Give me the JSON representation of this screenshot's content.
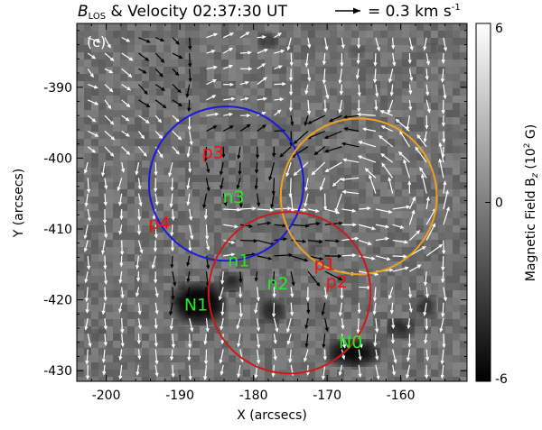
{
  "title": {
    "field_symbol": "B",
    "field_sub": "LOS",
    "text": " & Velocity 02:37:30 UT",
    "arrow_ref": "= 0.3 km s",
    "arrow_ref_exp": "-1"
  },
  "panel_tag": "(c)",
  "x_axis": {
    "label": "X (arcsecs)",
    "range": [
      -204,
      -151
    ],
    "ticks": [
      "-200",
      "-190",
      "-180",
      "-170",
      "-160"
    ]
  },
  "y_axis": {
    "label": "Y (arcsecs)",
    "range": [
      -431.5,
      -381
    ],
    "ticks": [
      "-390",
      "-400",
      "-410",
      "-420",
      "-430"
    ]
  },
  "colorbar": {
    "label": "Magnetic Field B",
    "label_sub": "z",
    "label_unit": " (10",
    "label_unit_exp": "2",
    "label_unit_end": " G)",
    "ticks": [
      "6",
      "0",
      "-6"
    ],
    "range": [
      -6,
      6
    ]
  },
  "circles": [
    {
      "name": "blue",
      "color": "#1a1adc",
      "cx": -183.7,
      "cy": -403.6,
      "r": 10.5
    },
    {
      "name": "orange",
      "color": "#f0a020",
      "cx": -165.7,
      "cy": -405.4,
      "r": 10.6
    },
    {
      "name": "red",
      "color": "#cc1a1a",
      "cx": -175.1,
      "cy": -419.0,
      "r": 11.0
    }
  ],
  "labels": [
    {
      "text": "p3",
      "x": -185.5,
      "y": -400.0,
      "color": "#ee1111"
    },
    {
      "text": "n3",
      "x": -182.7,
      "y": -406.3,
      "color": "#22ee22"
    },
    {
      "text": "p4",
      "x": -192.8,
      "y": -410.0,
      "color": "#ee1111"
    },
    {
      "text": "n1",
      "x": -182.0,
      "y": -415.3,
      "color": "#22ee22"
    },
    {
      "text": "p1",
      "x": -170.3,
      "y": -415.8,
      "color": "#ee1111"
    },
    {
      "text": "n2",
      "x": -176.7,
      "y": -418.5,
      "color": "#22ee22"
    },
    {
      "text": "p2",
      "x": -168.7,
      "y": -418.3,
      "color": "#ee1111"
    },
    {
      "text": "N1",
      "x": -187.8,
      "y": -421.5,
      "color": "#22ee22"
    },
    {
      "text": "N0",
      "x": -166.8,
      "y": -426.8,
      "color": "#22ee22"
    }
  ],
  "colors": {
    "white_arrow": "#ffffff",
    "black_arrow": "#000000",
    "frame": "#000000"
  }
}
